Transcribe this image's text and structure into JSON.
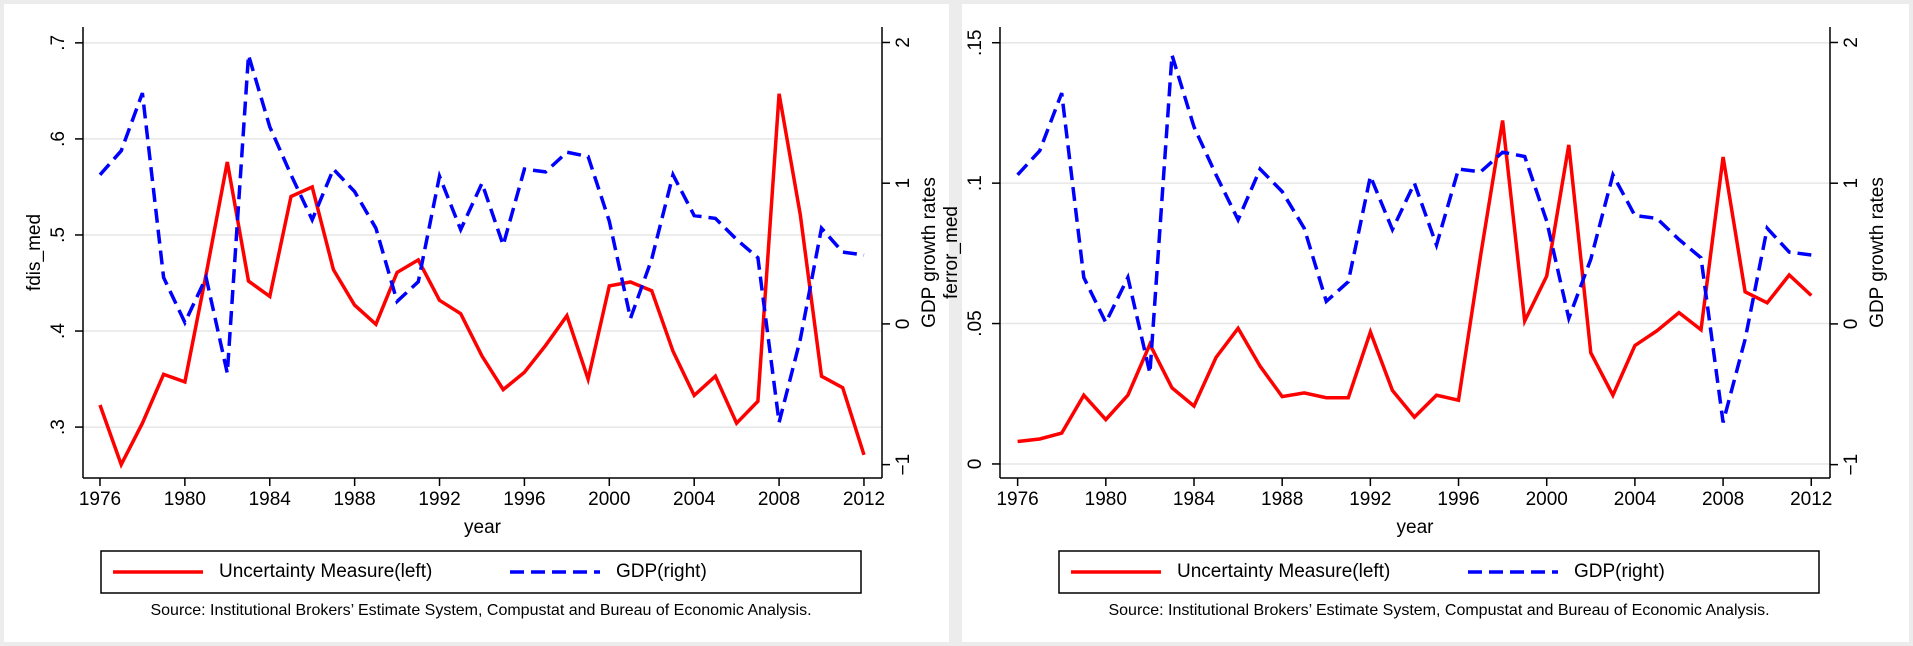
{
  "chart_data": [
    {
      "type": "line",
      "x": [
        1976,
        1977,
        1978,
        1979,
        1980,
        1981,
        1982,
        1983,
        1984,
        1985,
        1986,
        1987,
        1988,
        1989,
        1990,
        1991,
        1992,
        1993,
        1994,
        1995,
        1996,
        1997,
        1998,
        1999,
        2000,
        2001,
        2002,
        2003,
        2004,
        2005,
        2006,
        2007,
        2008,
        2009,
        2010,
        2011,
        2012
      ],
      "xlim": [
        1975.2,
        2012.85
      ],
      "xticks": [
        1976,
        1980,
        1984,
        1988,
        1992,
        1996,
        2000,
        2004,
        2008,
        2012
      ],
      "xlabel": "year",
      "ylabel": "fdis_med",
      "ylim": [
        0.247,
        0.7165
      ],
      "yticks": [
        {
          "value": 0.3,
          "label": ".3"
        },
        {
          "value": 0.4,
          "label": ".4"
        },
        {
          "value": 0.5,
          "label": ".5"
        },
        {
          "value": 0.6,
          "label": ".6"
        },
        {
          "value": 0.7,
          "label": ".7"
        }
      ],
      "y2label": "GDP growth rates",
      "y2lim": [
        -1.095,
        2.11
      ],
      "y2ticks": [
        {
          "value": -1,
          "label": "−1"
        },
        0,
        1,
        2
      ],
      "grid": true,
      "series": [
        {
          "name": "Uncertainty Measure(left)",
          "color": "#ff0000",
          "linestyle": "solid",
          "values": [
            0.323,
            0.261,
            0.304,
            0.355,
            0.347,
            0.459,
            0.576,
            0.452,
            0.436,
            0.54,
            0.55,
            0.464,
            0.427,
            0.407,
            0.461,
            0.474,
            0.432,
            0.418,
            0.374,
            0.339,
            0.357,
            0.385,
            0.416,
            0.35,
            0.447,
            0.451,
            0.442,
            0.379,
            0.333,
            0.353,
            0.304,
            0.327,
            0.647,
            0.521,
            0.353,
            0.341,
            0.271
          ]
        },
        {
          "name": "GDP(right)",
          "color": "#0000ff",
          "linestyle": "dashed",
          "axis": "y2",
          "values": [
            1.06,
            1.23,
            1.64,
            0.33,
            0.01,
            0.33,
            -0.35,
            1.91,
            1.4,
            1.06,
            0.74,
            1.1,
            0.94,
            0.68,
            0.16,
            0.3,
            1.05,
            0.67,
            1.0,
            0.56,
            1.1,
            1.08,
            1.22,
            1.19,
            0.73,
            0.04,
            0.46,
            1.06,
            0.77,
            0.75,
            0.6,
            0.47,
            -0.7,
            -0.11,
            0.68,
            0.51,
            0.49
          ]
        }
      ],
      "note": "Source: Institutional Brokers’ Estimate System, Compustat and Bureau of Economic Analysis."
    },
    {
      "type": "line",
      "x": [
        1976,
        1977,
        1978,
        1979,
        1980,
        1981,
        1982,
        1983,
        1984,
        1985,
        1986,
        1987,
        1988,
        1989,
        1990,
        1991,
        1992,
        1993,
        1994,
        1995,
        1996,
        1997,
        1998,
        1999,
        2000,
        2001,
        2002,
        2003,
        2004,
        2005,
        2006,
        2007,
        2008,
        2009,
        2010,
        2011,
        2012
      ],
      "xlim": [
        1975.2,
        2012.85
      ],
      "xticks": [
        1976,
        1980,
        1984,
        1988,
        1992,
        1996,
        2000,
        2004,
        2008,
        2012
      ],
      "xlabel": "year",
      "ylabel": "ferror_med",
      "ylim": [
        -0.005,
        0.1556
      ],
      "yticks": [
        0,
        {
          "value": 0.05,
          "label": ".05"
        },
        {
          "value": 0.1,
          "label": ".1"
        },
        {
          "value": 0.15,
          "label": ".15"
        }
      ],
      "y2label": "GDP growth rates",
      "y2lim": [
        -1.095,
        2.11
      ],
      "y2ticks": [
        {
          "value": -1,
          "label": "−1"
        },
        0,
        1,
        2
      ],
      "grid": true,
      "series": [
        {
          "name": "Uncertainty Measure(left)",
          "color": "#ff0000",
          "linestyle": "solid",
          "values": [
            0.008,
            0.0089,
            0.011,
            0.0245,
            0.0158,
            0.0245,
            0.0426,
            0.0271,
            0.0206,
            0.0379,
            0.0483,
            0.0348,
            0.024,
            0.0253,
            0.0236,
            0.0236,
            0.047,
            0.0262,
            0.0167,
            0.0245,
            0.0227,
            0.0742,
            0.1223,
            0.0509,
            0.0669,
            0.1136,
            0.0396,
            0.0245,
            0.0422,
            0.0474,
            0.0539,
            0.0478,
            0.1093,
            0.0613,
            0.0574,
            0.0673,
            0.06
          ]
        },
        {
          "name": "GDP(right)",
          "color": "#0000ff",
          "linestyle": "dashed",
          "axis": "y2",
          "values": [
            1.06,
            1.23,
            1.64,
            0.33,
            0.01,
            0.33,
            -0.35,
            1.91,
            1.4,
            1.06,
            0.74,
            1.1,
            0.94,
            0.68,
            0.16,
            0.3,
            1.05,
            0.67,
            1.0,
            0.56,
            1.1,
            1.08,
            1.22,
            1.19,
            0.73,
            0.04,
            0.46,
            1.06,
            0.77,
            0.75,
            0.6,
            0.47,
            -0.7,
            -0.11,
            0.68,
            0.51,
            0.49
          ]
        }
      ],
      "note": "Source: Institutional Brokers’ Estimate System, Compustat and Bureau of Economic Analysis."
    }
  ]
}
